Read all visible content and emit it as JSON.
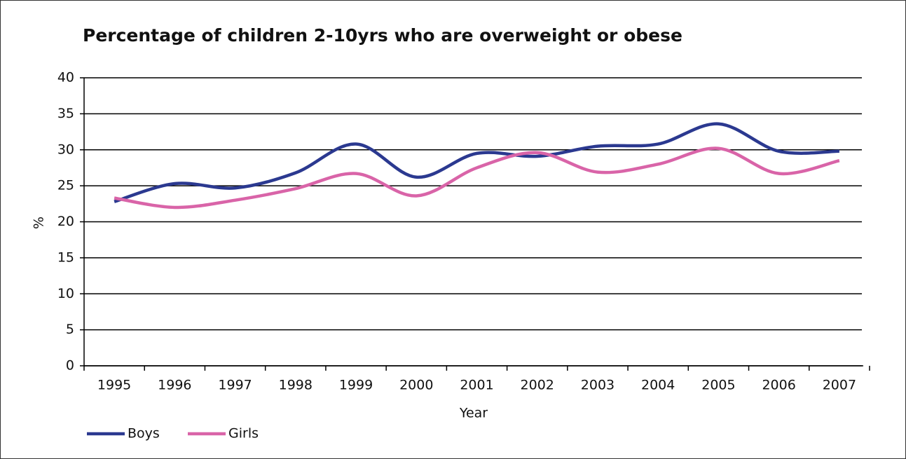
{
  "chart_data": {
    "type": "line",
    "title": "Percentage of children 2-10yrs who are overweight or obese",
    "x_label": "Year",
    "y_label": "%",
    "categories": [
      "1995",
      "1996",
      "1997",
      "1998",
      "1999",
      "2000",
      "2001",
      "2002",
      "2003",
      "2004",
      "2005",
      "2006",
      "2007"
    ],
    "series": [
      {
        "name": "Boys",
        "color": "#2b3990",
        "values": [
          22.8,
          25.3,
          24.7,
          26.8,
          30.8,
          26.2,
          29.5,
          29.1,
          30.5,
          30.8,
          33.6,
          29.8,
          29.8
        ]
      },
      {
        "name": "Girls",
        "color": "#d964a8",
        "values": [
          23.3,
          22.0,
          23.0,
          24.6,
          26.7,
          23.6,
          27.5,
          29.6,
          26.9,
          28.0,
          30.2,
          26.7,
          28.5
        ]
      }
    ],
    "ylim": [
      0,
      40
    ],
    "yticks": [
      0,
      5,
      10,
      15,
      20,
      25,
      30,
      35,
      40
    ],
    "grid": true,
    "smooth": true,
    "legend": "bottom-left"
  }
}
